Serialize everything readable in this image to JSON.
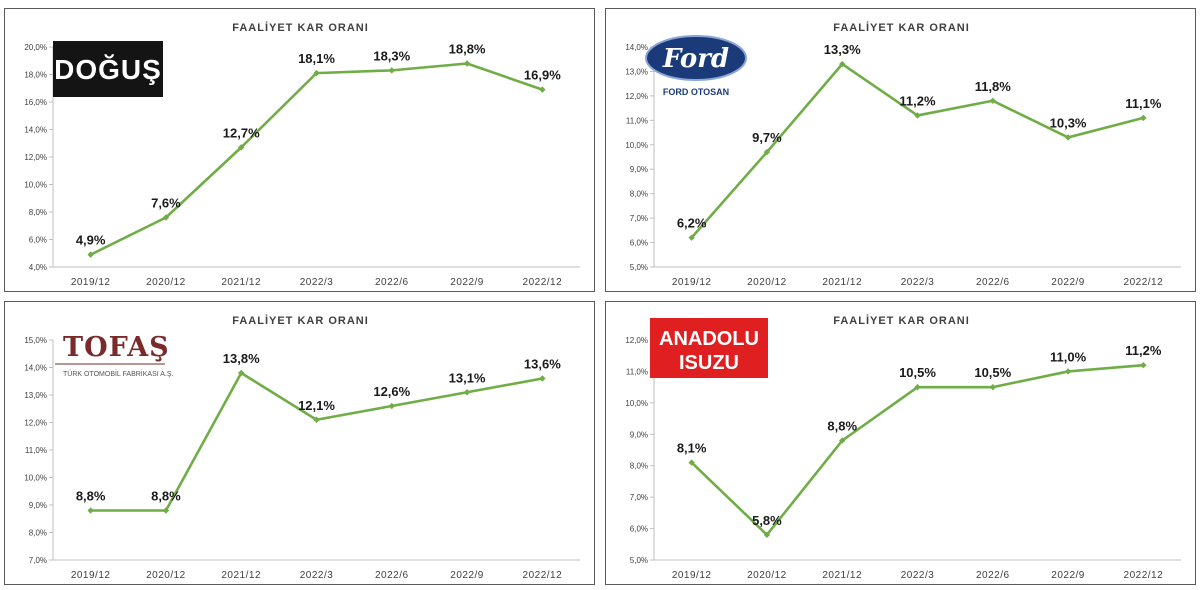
{
  "chart_data": [
    {
      "type": "line",
      "title": "FAALİYET KAR ORANI",
      "logo": {
        "text": "DOĞUŞ",
        "bg": "#141414",
        "fg": "#ffffff"
      },
      "categories": [
        "2019/12",
        "2020/12",
        "2021/12",
        "2022/3",
        "2022/6",
        "2022/9",
        "2022/12"
      ],
      "values": [
        4.9,
        7.6,
        12.7,
        18.1,
        18.3,
        18.8,
        16.9
      ],
      "labels": [
        "4,9%",
        "7,6%",
        "12,7%",
        "18,1%",
        "18,3%",
        "18,8%",
        "16,9%"
      ],
      "ylim": [
        4,
        20
      ],
      "yticks": [
        4,
        6,
        8,
        10,
        12,
        14,
        16,
        18,
        20
      ],
      "ytick_labels": [
        "4,0%",
        "6,0%",
        "8,0%",
        "10,0%",
        "12,0%",
        "14,0%",
        "16,0%",
        "18,0%",
        "20,0%"
      ],
      "line_color": "#70ad47",
      "grid": false
    },
    {
      "type": "line",
      "title": "FAALİYET KAR ORANI",
      "logo": {
        "text": "Ford",
        "subtext": "FORD OTOSAN",
        "bg": "#1a3a7a",
        "fg": "#ffffff"
      },
      "categories": [
        "2019/12",
        "2020/12",
        "2021/12",
        "2022/3",
        "2022/6",
        "2022/9",
        "2022/12"
      ],
      "values": [
        6.2,
        9.7,
        13.3,
        11.2,
        11.8,
        10.3,
        11.1
      ],
      "labels": [
        "6,2%",
        "9,7%",
        "13,3%",
        "11,2%",
        "11,8%",
        "10,3%",
        "11,1%"
      ],
      "ylim": [
        5,
        14
      ],
      "yticks": [
        5,
        6,
        7,
        8,
        9,
        10,
        11,
        12,
        13,
        14
      ],
      "ytick_labels": [
        "5,0%",
        "6,0%",
        "7,0%",
        "8,0%",
        "9,0%",
        "10,0%",
        "11,0%",
        "12,0%",
        "13,0%",
        "14,0%"
      ],
      "line_color": "#70ad47",
      "grid": false
    },
    {
      "type": "line",
      "title": "FAALİYET KAR ORANI",
      "logo": {
        "text": "TOFAŞ",
        "subtext": "TÜRK OTOMOBİL FABRİKASI A.Ş.",
        "fg": "#7a2a2a"
      },
      "categories": [
        "2019/12",
        "2020/12",
        "2021/12",
        "2022/3",
        "2022/6",
        "2022/9",
        "2022/12"
      ],
      "values": [
        8.8,
        8.8,
        13.8,
        12.1,
        12.6,
        13.1,
        13.6
      ],
      "labels": [
        "8,8%",
        "8,8%",
        "13,8%",
        "12,1%",
        "12,6%",
        "13,1%",
        "13,6%"
      ],
      "ylim": [
        7,
        15
      ],
      "yticks": [
        7,
        8,
        9,
        10,
        11,
        12,
        13,
        14,
        15
      ],
      "ytick_labels": [
        "7,0%",
        "8,0%",
        "9,0%",
        "10,0%",
        "11,0%",
        "12,0%",
        "13,0%",
        "14,0%",
        "15,0%"
      ],
      "line_color": "#70ad47",
      "grid": false
    },
    {
      "type": "line",
      "title": "FAALİYET KAR ORANI",
      "logo": {
        "text": "ANADOLU",
        "subtext": "ISUZU",
        "bg": "#e02020",
        "fg": "#ffffff"
      },
      "categories": [
        "2019/12",
        "2020/12",
        "2021/12",
        "2022/3",
        "2022/6",
        "2022/9",
        "2022/12"
      ],
      "values": [
        8.1,
        5.8,
        8.8,
        10.5,
        10.5,
        11.0,
        11.2
      ],
      "labels": [
        "8,1%",
        "5,8%",
        "8,8%",
        "10,5%",
        "10,5%",
        "11,0%",
        "11,2%"
      ],
      "ylim": [
        5,
        12
      ],
      "yticks": [
        5,
        6,
        7,
        8,
        9,
        10,
        11,
        12
      ],
      "ytick_labels": [
        "5,0%",
        "6,0%",
        "7,0%",
        "8,0%",
        "9,0%",
        "10,0%",
        "11,0%",
        "12,0%"
      ],
      "line_color": "#70ad47",
      "grid": false
    }
  ]
}
